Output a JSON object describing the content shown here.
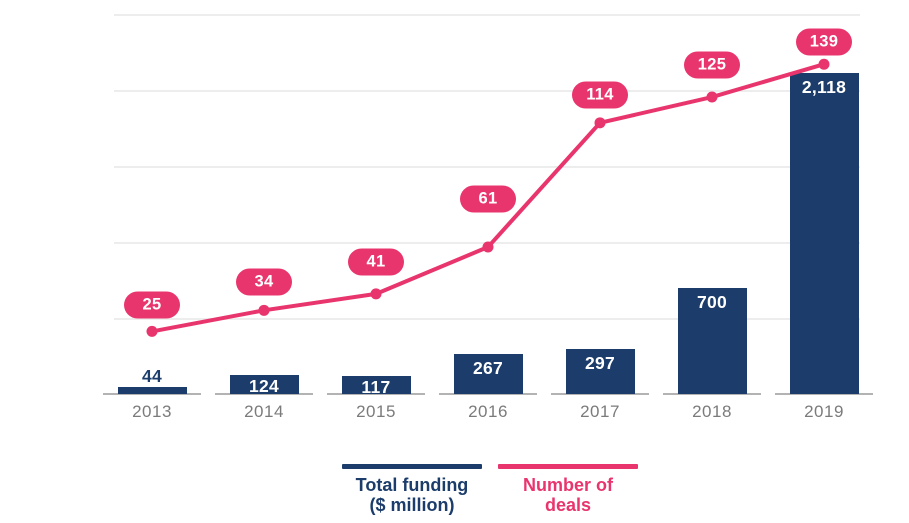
{
  "chart_data": {
    "type": "bar",
    "subtype": "combo-bar-line",
    "categories": [
      "2013",
      "2014",
      "2015",
      "2016",
      "2017",
      "2018",
      "2019"
    ],
    "series": [
      {
        "name": "Total funding ($ million)",
        "type": "bar",
        "color": "#1c3d6b",
        "values": [
          44,
          124,
          117,
          267,
          297,
          700,
          2118
        ],
        "labels": [
          "44",
          "124",
          "117",
          "267",
          "297",
          "700",
          "2,118"
        ]
      },
      {
        "name": "Number of deals",
        "type": "line",
        "color": "#e9356d",
        "values": [
          25,
          34,
          41,
          61,
          114,
          125,
          139
        ],
        "labels": [
          "25",
          "34",
          "41",
          "61",
          "114",
          "125",
          "139"
        ]
      }
    ],
    "title": "",
    "xlabel": "",
    "ylabel_left_hidden": "Total funding ($ million)",
    "ylabel_right_hidden": "Number of deals",
    "funding_ylim": [
      0,
      2500
    ],
    "deals_ylim": [
      0,
      160
    ],
    "gridline_step_funding": 500,
    "grid": "horizontal-only",
    "axis_tick_labels_shown": false,
    "legend_position": "bottom-center"
  },
  "legend": {
    "funding_line1": "Total funding",
    "funding_line2": "($ million)",
    "deals_line1": "Number of",
    "deals_line2": "deals"
  },
  "colors": {
    "bar_navy": "#1c3d6b",
    "line_pink": "#e9356d",
    "gridline": "#ededed",
    "baseline_tick": "#b3b3b3",
    "year_label": "#7b7b7b",
    "bar_label_inside": "#ffffff"
  }
}
